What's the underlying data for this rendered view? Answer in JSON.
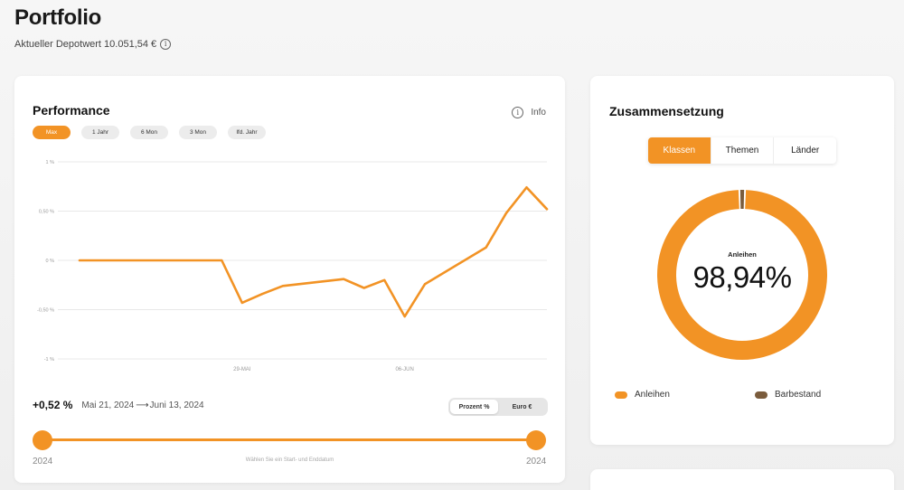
{
  "page": {
    "title": "Portfolio",
    "depot_value": "Aktueller Depotwert 10.051,54 €",
    "info_glyph": "i"
  },
  "performance": {
    "title": "Performance",
    "info_label": "Info",
    "range_tabs": [
      "Max",
      "1 Jahr",
      "6 Mon",
      "3 Mon",
      "lfd. Jahr"
    ],
    "active_range": "Max",
    "summary_value": "+0,52 %",
    "date_from": "Mai 21, 2024",
    "arrow": "⟶",
    "date_to": "Juni 13, 2024",
    "unit_options": [
      "Prozent %",
      "Euro €"
    ],
    "active_unit": "Prozent %",
    "slider_start_year": "2024",
    "slider_end_year": "2024",
    "slider_hint": "Wählen Sie ein Start- und Enddatum"
  },
  "chart_data": {
    "type": "line",
    "y_tick_labels": [
      "1 %",
      "0,50 %",
      "0 %",
      "-0,50 %",
      "-1 %"
    ],
    "y_tick_values": [
      1,
      0.5,
      0,
      -0.5,
      -1
    ],
    "ylim": [
      -1,
      1
    ],
    "x_tick_labels": [
      "29-MAI",
      "06-JUN"
    ],
    "x_tick_values": [
      "2024-05-29",
      "2024-06-06"
    ],
    "grid": true,
    "color": "#f29325",
    "x": [
      "2024-05-21",
      "2024-05-28",
      "2024-05-29",
      "2024-05-30",
      "2024-05-31",
      "2024-06-03",
      "2024-06-04",
      "2024-06-05",
      "2024-06-06",
      "2024-06-07",
      "2024-06-10",
      "2024-06-11",
      "2024-06-12",
      "2024-06-13"
    ],
    "values": [
      0,
      0,
      -0.43,
      -0.34,
      -0.26,
      -0.19,
      -0.28,
      -0.2,
      -0.57,
      -0.24,
      0.13,
      0.48,
      0.74,
      0.52
    ]
  },
  "composition": {
    "title": "Zusammensetzung",
    "tabs": [
      "Klassen",
      "Themen",
      "Länder"
    ],
    "active_tab": "Klassen",
    "center_label": "Anleihen",
    "center_value": "98,94%",
    "donut": {
      "type": "pie",
      "categories": [
        "Anleihen",
        "Barbestand"
      ],
      "values": [
        98.94,
        1.06
      ],
      "colors": [
        "#f29325",
        "#7a5c3c"
      ]
    },
    "legend": [
      {
        "label": "Anleihen",
        "color": "#f29325"
      },
      {
        "label": "Barbestand",
        "color": "#7a5c3c"
      }
    ]
  }
}
